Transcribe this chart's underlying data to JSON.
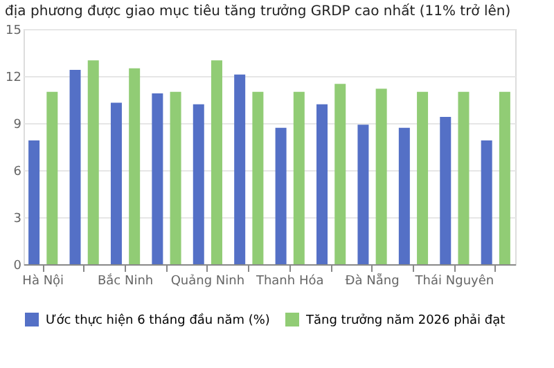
{
  "chart_data": {
    "type": "bar",
    "title": "địa phương được giao mục tiêu tăng trưởng GRDP cao nhất (11% trở lên)",
    "categories": [
      "Hà Nội",
      null,
      "Bắc Ninh",
      null,
      "Quảng Ninh",
      null,
      "Thanh Hóa",
      null,
      "Đà Nẵng",
      null,
      "Thái Nguyên",
      null
    ],
    "series": [
      {
        "name": "Ước thực hiện 6 tháng đầu năm (%)",
        "color": "#5470c6",
        "values": [
          7.9,
          12.4,
          10.3,
          10.9,
          10.2,
          12.1,
          8.7,
          10.2,
          8.9,
          8.7,
          9.4,
          7.9
        ]
      },
      {
        "name": "Tăng trưởng năm 2026 phải đạt",
        "color": "#91cc75",
        "values": [
          11.0,
          13.0,
          12.5,
          11.0,
          13.0,
          11.0,
          11.0,
          11.5,
          11.2,
          11.0,
          11.0,
          11.0
        ]
      }
    ],
    "ylim": [
      0,
      15
    ],
    "yticks": [
      0,
      3,
      6,
      9,
      12,
      15
    ],
    "grid": "y",
    "legend": "bottom"
  }
}
